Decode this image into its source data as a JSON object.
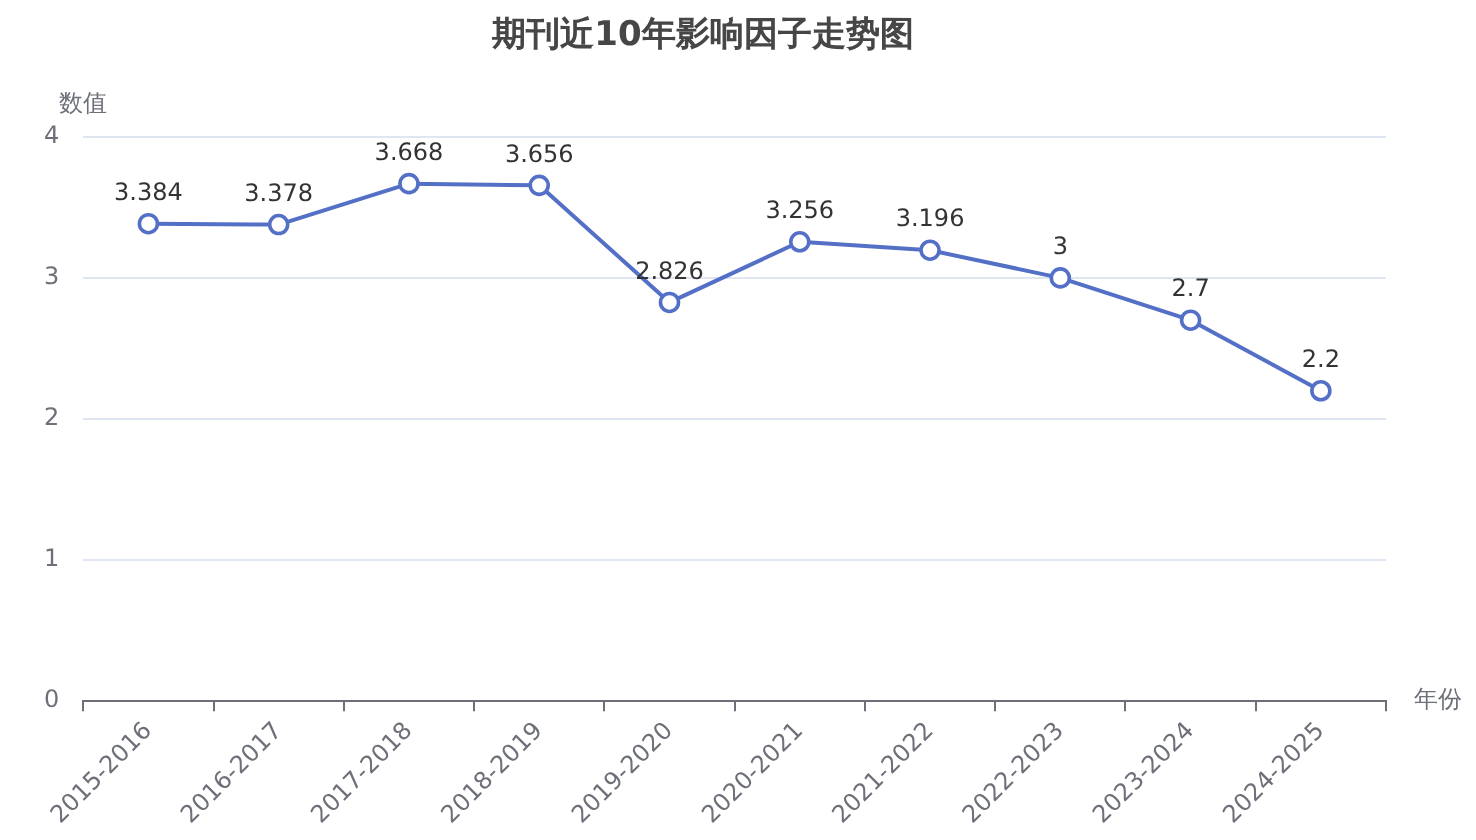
{
  "chart_data": {
    "type": "line",
    "title": "期刊近10年影响因子走势图",
    "xlabel": "年份",
    "ylabel": "数值",
    "categories": [
      "2015-2016",
      "2016-2017",
      "2017-2018",
      "2018-2019",
      "2019-2020",
      "2020-2021",
      "2021-2022",
      "2022-2023",
      "2023-2024",
      "2024-2025"
    ],
    "series": [
      {
        "color": "#5470c6",
        "values": [
          3.384,
          3.378,
          3.668,
          3.656,
          2.826,
          3.256,
          3.196,
          3,
          2.7,
          2.2
        ]
      }
    ],
    "ylim": [
      0,
      4
    ],
    "yticks": [
      0,
      1,
      2,
      3,
      4
    ],
    "grid": "y",
    "legend": false,
    "marker": "circle",
    "line_style": "solid",
    "data_labels": true
  }
}
